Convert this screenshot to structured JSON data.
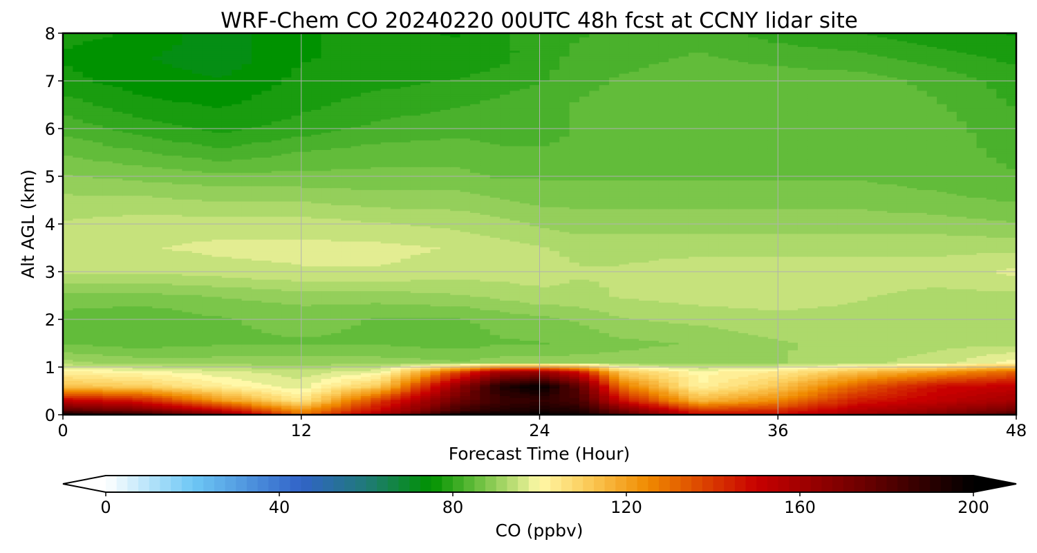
{
  "chart_data": {
    "type": "heatmap",
    "title": "WRF-Chem CO  20240220 00UTC 48h fcst at CCNY lidar site",
    "xlabel": "Forecast Time (Hour)",
    "ylabel": "Alt AGL (km)",
    "xlim": [
      0,
      48
    ],
    "ylim": [
      0,
      8
    ],
    "x_ticks": [
      0,
      12,
      24,
      36,
      48
    ],
    "y_ticks": [
      0,
      1,
      2,
      3,
      4,
      5,
      6,
      7,
      8
    ],
    "grid": true,
    "colorbar": {
      "label": "CO  (ppbv)",
      "min": 0,
      "max": 200,
      "ticks": [
        0,
        40,
        80,
        120,
        160,
        200
      ],
      "extend": "both",
      "orientation": "horizontal",
      "stops": [
        {
          "v": 0,
          "c": "#ffffff"
        },
        {
          "v": 20,
          "c": "#6ec8f5"
        },
        {
          "v": 45,
          "c": "#3163c8"
        },
        {
          "v": 60,
          "c": "#207a78"
        },
        {
          "v": 75,
          "c": "#009200"
        },
        {
          "v": 86,
          "c": "#6cc040"
        },
        {
          "v": 95,
          "c": "#c6e27c"
        },
        {
          "v": 100,
          "c": "#fff8a8"
        },
        {
          "v": 110,
          "c": "#fcd060"
        },
        {
          "v": 125,
          "c": "#f08a00"
        },
        {
          "v": 150,
          "c": "#c80000"
        },
        {
          "v": 175,
          "c": "#6a0000"
        },
        {
          "v": 200,
          "c": "#000000"
        }
      ]
    },
    "x": [
      0,
      4,
      8,
      12,
      16,
      20,
      22,
      24,
      26,
      28,
      32,
      36,
      40,
      44,
      48
    ],
    "y": [
      0,
      0.1,
      0.3,
      0.6,
      0.9,
      1.1,
      1.5,
      2.0,
      2.5,
      3.0,
      3.5,
      4.0,
      4.5,
      5.0,
      5.5,
      6.0,
      6.5,
      7.0,
      7.5,
      8.0
    ],
    "z": [
      [
        200,
        192,
        170,
        130,
        160,
        200,
        200,
        200,
        200,
        182,
        150,
        150,
        160,
        168,
        185
      ],
      [
        178,
        170,
        150,
        122,
        150,
        185,
        192,
        194,
        192,
        172,
        140,
        142,
        155,
        162,
        172
      ],
      [
        152,
        145,
        122,
        104,
        140,
        175,
        186,
        188,
        184,
        150,
        115,
        125,
        145,
        152,
        160
      ],
      [
        113,
        110,
        102,
        97,
        112,
        165,
        192,
        200,
        178,
        130,
        101,
        112,
        133,
        148,
        152
      ],
      [
        102,
        100,
        97,
        95,
        98,
        138,
        160,
        162,
        148,
        112,
        100,
        104,
        114,
        122,
        132
      ],
      [
        92,
        90,
        90,
        90,
        90,
        89,
        90,
        90,
        90,
        90,
        90,
        91,
        93,
        95,
        100
      ],
      [
        86,
        85,
        86,
        86,
        86,
        85,
        86,
        86,
        87,
        88,
        89,
        91,
        92,
        93,
        93
      ],
      [
        85,
        84,
        86,
        87,
        86,
        86,
        87,
        88,
        89,
        91,
        92,
        93,
        93,
        92,
        92
      ],
      [
        88,
        88,
        89,
        90,
        90,
        91,
        92,
        93,
        93,
        94,
        95,
        95,
        94,
        93,
        93
      ],
      [
        94,
        94,
        95,
        96,
        96,
        95,
        95,
        95,
        94,
        94,
        95,
        95,
        95,
        95,
        97
      ],
      [
        95,
        96,
        97,
        97,
        97,
        96,
        95,
        94,
        93,
        93,
        93,
        93,
        93,
        93,
        93
      ],
      [
        94,
        95,
        95,
        95,
        94,
        93,
        92,
        91,
        90,
        90,
        90,
        90,
        90,
        90,
        89
      ],
      [
        92,
        92,
        91,
        91,
        90,
        90,
        89,
        88,
        88,
        88,
        88,
        88,
        88,
        87,
        86
      ],
      [
        89,
        88,
        87,
        87,
        87,
        87,
        86,
        86,
        86,
        86,
        86,
        86,
        86,
        85,
        84
      ],
      [
        86,
        84,
        82,
        84,
        85,
        85,
        84,
        84,
        84,
        85,
        85,
        86,
        86,
        85,
        83
      ],
      [
        83,
        80,
        78,
        80,
        82,
        83,
        83,
        83,
        84,
        85,
        86,
        86,
        86,
        85,
        82
      ],
      [
        80,
        77,
        76,
        78,
        80,
        81,
        82,
        83,
        84,
        85,
        86,
        86,
        86,
        84,
        81
      ],
      [
        77,
        75,
        74,
        77,
        78,
        79,
        80,
        81,
        83,
        84,
        85,
        85,
        85,
        83,
        80
      ],
      [
        76,
        74,
        72,
        76,
        77,
        77,
        78,
        80,
        82,
        83,
        84,
        83,
        82,
        80,
        78
      ],
      [
        77,
        76,
        72,
        76,
        77,
        76,
        78,
        80,
        81,
        82,
        83,
        80,
        79,
        77,
        76
      ]
    ]
  }
}
